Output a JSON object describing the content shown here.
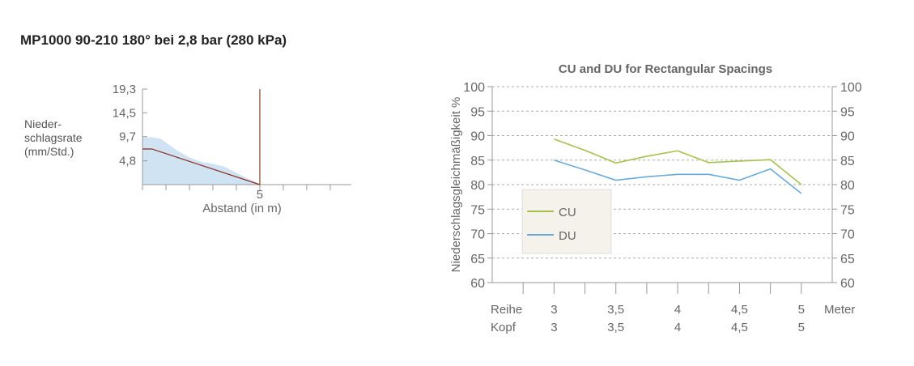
{
  "title": "MP1000 90-210 180° bei 2,8 bar (280 kPa)",
  "left_ylabel_lines": [
    "Nieder-",
    "schlagsrate",
    "(mm/Std.)"
  ],
  "colors": {
    "profile_fill": "#cfe3f3",
    "profile_line": "#8b2a1f",
    "marker_line": "#a0694f",
    "cu": "#a6c24d",
    "du": "#6aaad9",
    "axis": "#999999",
    "grid": "#aaaaaa"
  },
  "chart_data": [
    {
      "type": "area",
      "id": "precipitation-profile",
      "title": "",
      "xlabel": "Abstand (in m)",
      "ylabel": "Nieder- schlagsrate (mm/Std.)",
      "yticks": [
        4.8,
        9.7,
        14.5,
        19.3
      ],
      "ytick_labels": [
        "4,8",
        "9,7",
        "14,5",
        "19,3"
      ],
      "ylim": [
        0,
        19.3
      ],
      "xlim": [
        0,
        8.9
      ],
      "xticks": [
        0,
        1,
        2,
        3,
        4,
        5,
        6,
        7,
        8
      ],
      "xtick_labels": {
        "5": "5"
      },
      "measured_x": [
        0,
        0.4,
        0.8,
        1.2,
        1.5,
        2.0,
        2.5,
        3.0,
        3.5,
        4.0,
        4.5,
        5.0
      ],
      "measured_y": [
        9.5,
        9.6,
        9.2,
        7.8,
        6.8,
        5.5,
        4.6,
        4.2,
        3.6,
        2.4,
        1.2,
        0.1
      ],
      "line_x": [
        0,
        0.4,
        5.0
      ],
      "line_y": [
        7.2,
        7.2,
        0
      ],
      "marker_x": 5.0
    },
    {
      "type": "line",
      "id": "cu-du-chart",
      "title": "CU and DU for Rectangular Spacings",
      "ylabel": "Niederschlagsgleichmäßigkeit %",
      "ylim": [
        60,
        100
      ],
      "yticks": [
        60,
        65,
        70,
        75,
        80,
        85,
        90,
        95,
        100
      ],
      "xlim": [
        2.5,
        5.25
      ],
      "x_minor_ticks": [
        2.75,
        3.25,
        3.75,
        4.25,
        4.75
      ],
      "x": [
        3,
        3.25,
        3.5,
        3.75,
        4,
        4.25,
        4.5,
        4.75,
        5
      ],
      "series": [
        {
          "name": "CU",
          "values": [
            89.3,
            87.0,
            84.4,
            85.8,
            86.9,
            84.5,
            84.8,
            85.1,
            80.0
          ]
        },
        {
          "name": "DU",
          "values": [
            85.0,
            83.0,
            80.9,
            81.6,
            82.1,
            82.1,
            80.9,
            83.2,
            78.2
          ]
        }
      ],
      "legend_position": "bottom-left",
      "row_labels": [
        "Reihe",
        "Kopf"
      ],
      "x_unit": "Meter",
      "x_tick_values": [
        3,
        3.5,
        4,
        4.5,
        5
      ],
      "reihe_values": [
        "3",
        "3,5",
        "4",
        "4,5",
        "5"
      ],
      "kopf_values": [
        "3",
        "3,5",
        "4",
        "4,5",
        "5"
      ]
    }
  ]
}
